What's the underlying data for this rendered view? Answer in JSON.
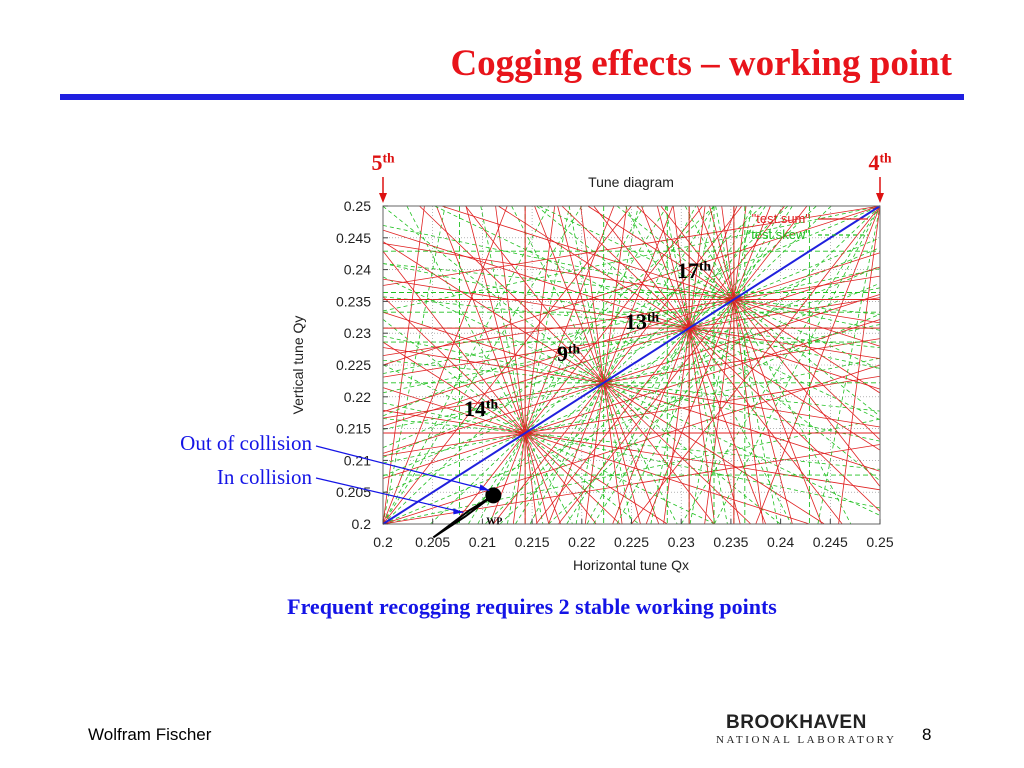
{
  "slide": {
    "title": "Cogging effects – working point",
    "caption": "Frequent recogging requires 2 stable working points",
    "author": "Wolfram Fischer",
    "page_number": "8",
    "logo_top": "BROOKHAVEN",
    "logo_bottom": "NATIONAL LABORATORY",
    "colors": {
      "title": "#e8141b",
      "rule": "#1f1fe0",
      "annotation_blue": "#1414e6",
      "annotation_red": "#dd1111"
    }
  },
  "chart_data": {
    "type": "scatter",
    "title": "Tune diagram",
    "xlabel": "Horizontal tune Qx",
    "ylabel": "Vertical tune Qy",
    "xlim": [
      0.2,
      0.25
    ],
    "ylim": [
      0.2,
      0.25
    ],
    "ticks": [
      "0.2",
      "0.205",
      "0.21",
      "0.215",
      "0.22",
      "0.225",
      "0.23",
      "0.235",
      "0.24",
      "0.245",
      "0.25"
    ],
    "grid": true,
    "legend_position": "top-right",
    "series": [
      {
        "name": "\"test.sum\"",
        "color": "#e02020"
      },
      {
        "name": "\"test.skew\"",
        "color": "#20c020"
      }
    ],
    "diagonal": {
      "from": [
        0.2,
        0.2
      ],
      "to": [
        0.25,
        0.25
      ],
      "color": "#2020dd"
    },
    "resonance_nodes": [
      {
        "q": 0.2143,
        "label": "14",
        "sup": "th"
      },
      {
        "q": 0.2222,
        "label": "9",
        "sup": "th"
      },
      {
        "q": 0.2308,
        "label": "13",
        "sup": "th"
      },
      {
        "q": 0.2353,
        "label": "17",
        "sup": "th"
      }
    ],
    "edge_labels": [
      {
        "q": 0.2,
        "label": "5",
        "sup": "th"
      },
      {
        "q": 0.25,
        "label": "4",
        "sup": "th"
      }
    ],
    "working_point": {
      "label": "WP",
      "qx": 0.2111,
      "qy": 0.2045,
      "annotations": [
        "Out of collision",
        "In collision"
      ]
    }
  }
}
